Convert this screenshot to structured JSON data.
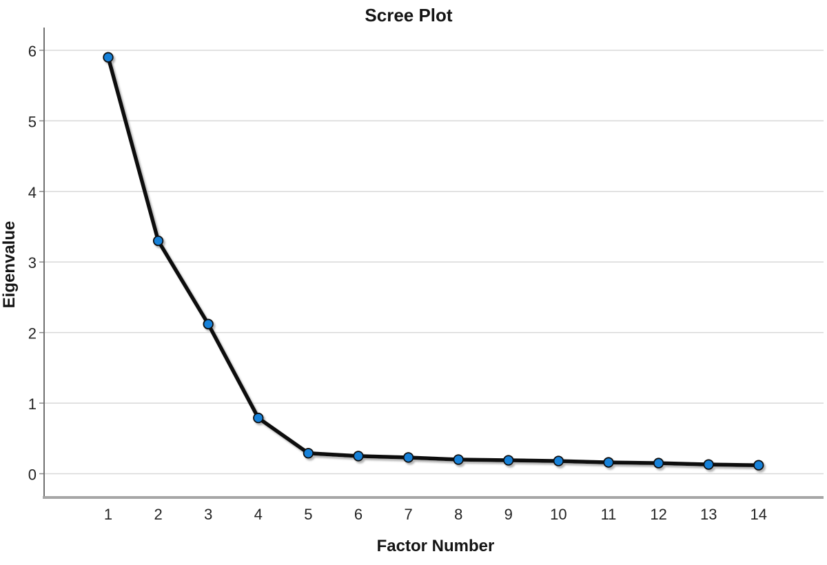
{
  "chart_data": {
    "type": "line",
    "title": "Scree Plot",
    "xlabel": "Factor Number",
    "ylabel": "Eigenvalue",
    "x": [
      1,
      2,
      3,
      4,
      5,
      6,
      7,
      8,
      9,
      10,
      11,
      12,
      13,
      14
    ],
    "series": [
      {
        "name": "Eigenvalue",
        "values": [
          5.9,
          3.3,
          2.12,
          0.79,
          0.29,
          0.25,
          0.23,
          0.2,
          0.19,
          0.18,
          0.16,
          0.15,
          0.13,
          0.12
        ]
      }
    ],
    "yticks": [
      0,
      1,
      2,
      3,
      4,
      5,
      6
    ],
    "ylim": [
      -0.34,
      6.33
    ],
    "xlim": [
      0,
      15
    ],
    "grid": "horizontal-only",
    "legend": "none",
    "marker": "circle",
    "style": {
      "background": "#ffffff",
      "line_color": "#0d0d0d",
      "marker_fill": "#1581d9",
      "marker_stroke": "#0a0a0a",
      "grid_color": "#d8d8d8",
      "y_axis_color": "#6f6f6f",
      "x_axis_color": "#a6a6a6",
      "text_color": "#141414"
    }
  }
}
